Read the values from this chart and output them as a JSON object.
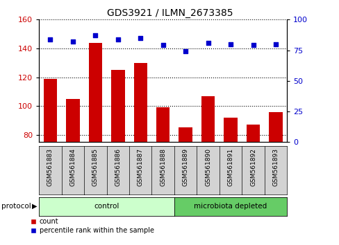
{
  "title": "GDS3921 / ILMN_2673385",
  "samples": [
    "GSM561883",
    "GSM561884",
    "GSM561885",
    "GSM561886",
    "GSM561887",
    "GSM561888",
    "GSM561889",
    "GSM561890",
    "GSM561891",
    "GSM561892",
    "GSM561893"
  ],
  "counts": [
    119,
    105,
    144,
    125,
    130,
    99,
    85,
    107,
    92,
    87,
    96
  ],
  "percentile_ranks": [
    84,
    82,
    87,
    84,
    85,
    79,
    74,
    81,
    80,
    79,
    80
  ],
  "ylim_left": [
    75,
    160
  ],
  "ylim_right": [
    0,
    100
  ],
  "yticks_left": [
    80,
    100,
    120,
    140,
    160
  ],
  "yticks_right": [
    0,
    25,
    50,
    75,
    100
  ],
  "bar_color": "#cc0000",
  "dot_color": "#0000cc",
  "n_control": 6,
  "n_microbiota": 5,
  "control_color": "#ccffcc",
  "microbiota_color": "#66cc66",
  "protocol_label": "protocol",
  "control_label": "control",
  "microbiota_label": "microbiota depleted",
  "legend_count": "count",
  "legend_percentile": "percentile rank within the sample",
  "tick_label_color_left": "#cc0000",
  "tick_label_color_right": "#0000cc",
  "label_box_color": "#d3d3d3",
  "grid_color": "#000000",
  "title_fontsize": 10,
  "axis_fontsize": 8,
  "label_fontsize": 7.5
}
